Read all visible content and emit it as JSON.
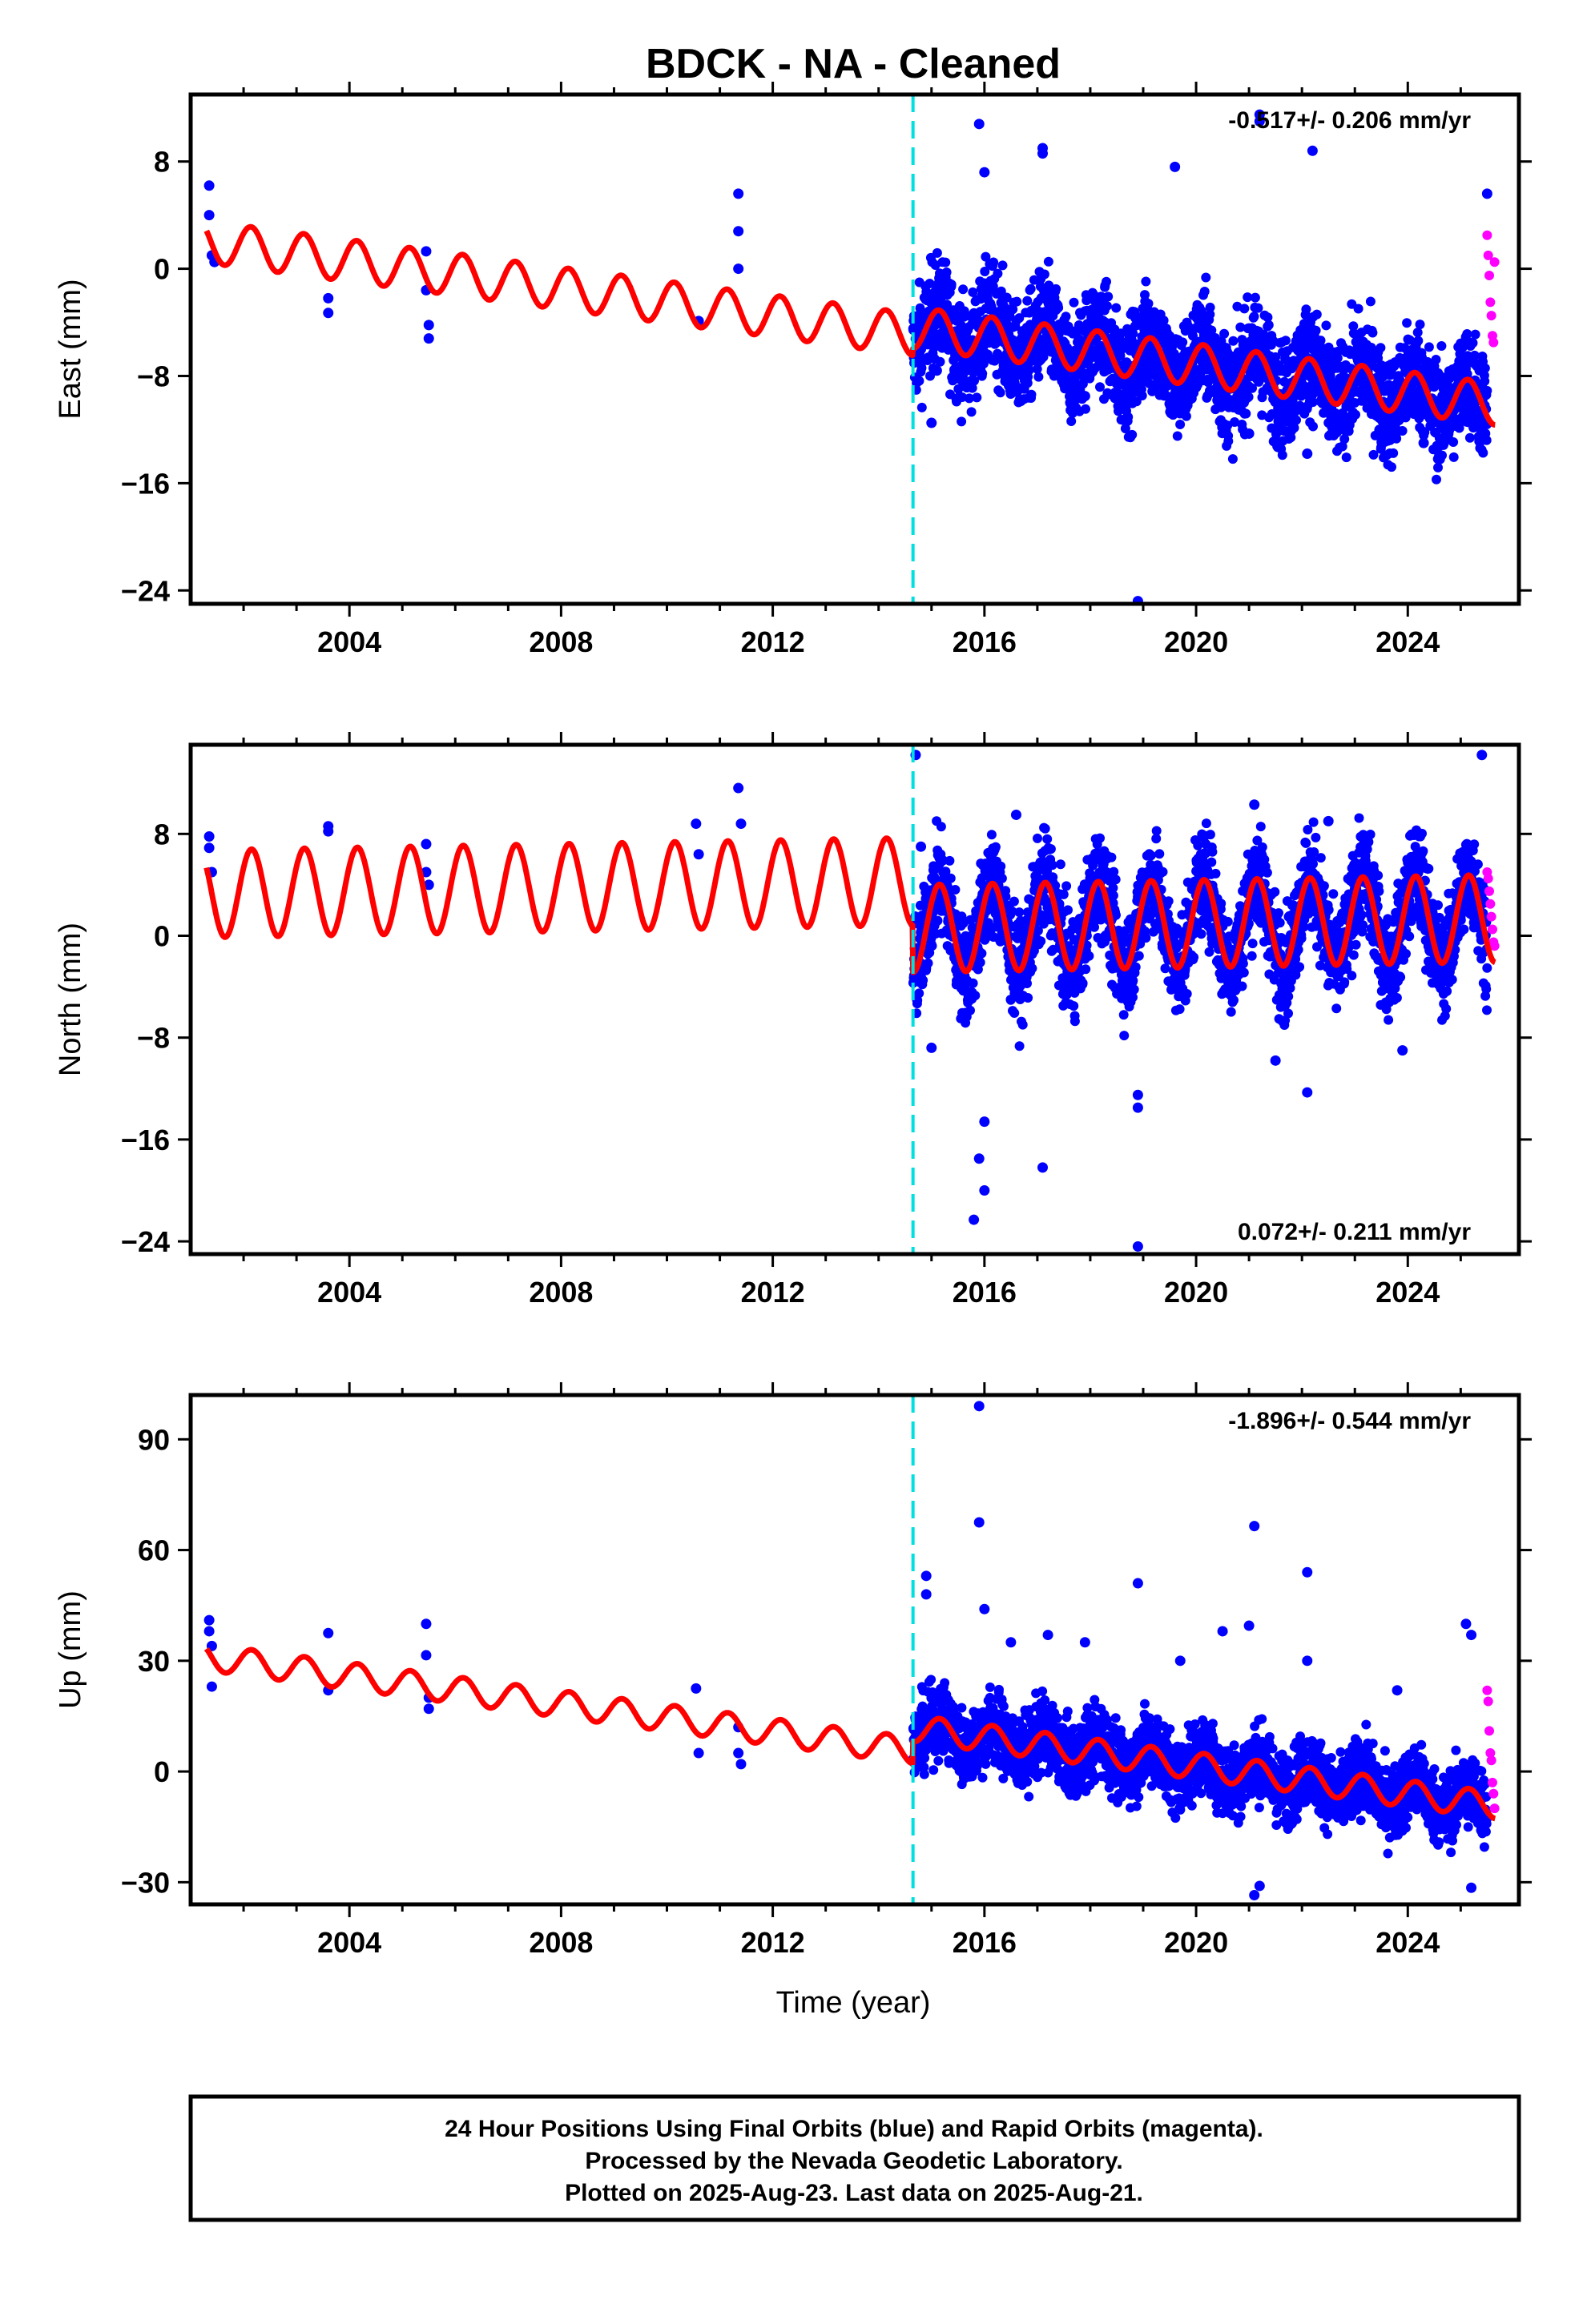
{
  "title": "BDCK  - NA - Cleaned",
  "xlabel": "Time (year)",
  "xticks": [
    2004,
    2008,
    2012,
    2016,
    2020,
    2024
  ],
  "xlim": [
    2001.0,
    2026.1
  ],
  "offset_line_year": 2014.65,
  "colors": {
    "final_orbits": "#0000ff",
    "rapid_orbits": "#ff00ff",
    "model": "#ff0000",
    "offset_line": "#00e0e0"
  },
  "footer": {
    "line1": "24 Hour Positions Using Final Orbits (blue) and Rapid Orbits (magenta).",
    "line2": "Processed by the Nevada Geodetic Laboratory.",
    "line3": "Plotted on 2025-Aug-23. Last data on 2025-Aug-21."
  },
  "chart_data": [
    {
      "type": "scatter",
      "component": "east",
      "ylabel": "East (mm)",
      "rate_label": "-0.517+/- 0.206 mm/yr",
      "rate_position": "top-right",
      "ylim": [
        -25,
        13
      ],
      "yticks": [
        8,
        0,
        -8,
        -16,
        -24
      ],
      "series": [
        {
          "name": "Final Orbits",
          "kind": "points"
        },
        {
          "name": "Rapid Orbits",
          "kind": "points"
        },
        {
          "name": "Model",
          "kind": "line"
        }
      ],
      "segments": [
        {
          "x_start": 2001.3,
          "x_end": 2014.65,
          "offset": 2.0,
          "rate": -0.517,
          "sin_amp": 1.2,
          "cos_amp": 1.0
        },
        {
          "x_start": 2014.65,
          "x_end": 2025.65,
          "offset": 2.5,
          "rate": -0.517,
          "sin_amp": 1.2,
          "cos_amp": 1.0
        }
      ],
      "sparse_points": [
        [
          2001.35,
          6.2
        ],
        [
          2001.35,
          4.0
        ],
        [
          2001.4,
          1.0
        ],
        [
          2001.45,
          0.5
        ],
        [
          2003.6,
          -2.2
        ],
        [
          2003.6,
          -3.3
        ],
        [
          2005.45,
          1.3
        ],
        [
          2005.45,
          -1.6
        ],
        [
          2005.5,
          -4.2
        ],
        [
          2005.5,
          -5.2
        ],
        [
          2010.6,
          -3.9
        ],
        [
          2011.35,
          5.6
        ],
        [
          2011.35,
          2.8
        ],
        [
          2011.35,
          0.0
        ]
      ],
      "dense_start": 2014.65,
      "dense_end": 2025.5,
      "dense_noise": 2.0,
      "outliers": [
        [
          2014.8,
          -6.0
        ],
        [
          2015.0,
          -11.5
        ],
        [
          2015.1,
          -7.6
        ],
        [
          2015.9,
          10.8
        ],
        [
          2016.0,
          7.2
        ],
        [
          2017.1,
          9.0
        ],
        [
          2017.1,
          8.6
        ],
        [
          2017.9,
          -9.5
        ],
        [
          2018.9,
          -24.8
        ],
        [
          2019.6,
          7.6
        ],
        [
          2021.0,
          -12.3
        ],
        [
          2021.2,
          11.5
        ],
        [
          2021.2,
          11.0
        ],
        [
          2022.1,
          -13.8
        ],
        [
          2022.2,
          8.8
        ],
        [
          2022.9,
          -9.2
        ],
        [
          2024.3,
          -13.0
        ],
        [
          2025.2,
          -11.5
        ],
        [
          2025.5,
          5.6
        ]
      ],
      "rapid_start": 2025.5,
      "rapid_end": 2025.64,
      "rapid_points": [
        [
          2025.5,
          2.5
        ],
        [
          2025.52,
          1.0
        ],
        [
          2025.54,
          -0.5
        ],
        [
          2025.56,
          -2.5
        ],
        [
          2025.58,
          -3.5
        ],
        [
          2025.6,
          -5.0
        ],
        [
          2025.62,
          -5.5
        ],
        [
          2025.64,
          0.5
        ]
      ]
    },
    {
      "type": "scatter",
      "component": "north",
      "ylabel": "North (mm)",
      "rate_label": "0.072+/- 0.211 mm/yr",
      "rate_position": "bottom-right",
      "ylim": [
        -25,
        15
      ],
      "yticks": [
        8,
        0,
        -8,
        -16,
        -24
      ],
      "series": [
        {
          "name": "Final Orbits",
          "kind": "points"
        },
        {
          "name": "Rapid Orbits",
          "kind": "points"
        },
        {
          "name": "Model",
          "kind": "line"
        }
      ],
      "segments": [
        {
          "x_start": 2001.3,
          "x_end": 2014.65,
          "offset": 3.3,
          "rate": 0.072,
          "sin_amp": 2.8,
          "cos_amp": 2.0
        },
        {
          "x_start": 2014.65,
          "x_end": 2025.65,
          "offset": -0.4,
          "rate": 0.072,
          "sin_amp": 2.8,
          "cos_amp": 2.0
        }
      ],
      "sparse_points": [
        [
          2001.35,
          7.8
        ],
        [
          2001.35,
          6.9
        ],
        [
          2001.4,
          5.0
        ],
        [
          2003.6,
          8.6
        ],
        [
          2003.6,
          8.2
        ],
        [
          2005.45,
          7.2
        ],
        [
          2005.45,
          5.0
        ],
        [
          2005.5,
          4.0
        ],
        [
          2010.55,
          8.8
        ],
        [
          2010.6,
          6.4
        ],
        [
          2011.35,
          11.6
        ],
        [
          2011.4,
          8.8
        ]
      ],
      "dense_start": 2014.65,
      "dense_end": 2025.5,
      "dense_noise": 2.0,
      "outliers": [
        [
          2014.7,
          14.2
        ],
        [
          2014.8,
          7.0
        ],
        [
          2015.0,
          -8.8
        ],
        [
          2015.9,
          -17.5
        ],
        [
          2016.0,
          -20.0
        ],
        [
          2015.8,
          -22.3
        ],
        [
          2016.0,
          -14.6
        ],
        [
          2016.6,
          9.5
        ],
        [
          2017.1,
          -18.2
        ],
        [
          2018.9,
          -24.4
        ],
        [
          2018.9,
          -13.5
        ],
        [
          2018.9,
          -12.5
        ],
        [
          2021.1,
          10.3
        ],
        [
          2021.5,
          -9.8
        ],
        [
          2022.1,
          -12.3
        ],
        [
          2022.5,
          9.0
        ],
        [
          2023.9,
          -9.0
        ],
        [
          2025.4,
          14.2
        ]
      ],
      "rapid_start": 2025.5,
      "rapid_end": 2025.64,
      "rapid_points": [
        [
          2025.5,
          5.0
        ],
        [
          2025.52,
          4.5
        ],
        [
          2025.54,
          3.5
        ],
        [
          2025.56,
          2.5
        ],
        [
          2025.58,
          1.5
        ],
        [
          2025.6,
          0.5
        ],
        [
          2025.62,
          -0.5
        ],
        [
          2025.64,
          -0.8
        ]
      ]
    },
    {
      "type": "scatter",
      "component": "up",
      "ylabel": "Up (mm)",
      "rate_label": "-1.896+/- 0.544 mm/yr",
      "rate_position": "top-right",
      "ylim": [
        -36,
        102
      ],
      "yticks": [
        90,
        60,
        30,
        0,
        -30
      ],
      "series": [
        {
          "name": "Final Orbits",
          "kind": "points"
        },
        {
          "name": "Rapid Orbits",
          "kind": "points"
        },
        {
          "name": "Model",
          "kind": "line"
        }
      ],
      "segments": [
        {
          "x_start": 2001.3,
          "x_end": 2014.65,
          "offset": 31.0,
          "rate": -1.896,
          "sin_amp": 3.0,
          "cos_amp": 2.0
        },
        {
          "x_start": 2014.65,
          "x_end": 2025.65,
          "offset": 37.0,
          "rate": -1.896,
          "sin_amp": 3.0,
          "cos_amp": 2.0
        }
      ],
      "sparse_points": [
        [
          2001.35,
          41.0
        ],
        [
          2001.35,
          38.0
        ],
        [
          2001.4,
          34.0
        ],
        [
          2001.4,
          23.0
        ],
        [
          2003.6,
          37.5
        ],
        [
          2003.6,
          22.0
        ],
        [
          2005.45,
          40.0
        ],
        [
          2005.45,
          31.5
        ],
        [
          2005.5,
          20.0
        ],
        [
          2005.5,
          17.0
        ],
        [
          2010.55,
          22.5
        ],
        [
          2010.6,
          5.0
        ],
        [
          2011.35,
          12.0
        ],
        [
          2011.35,
          5.0
        ],
        [
          2011.4,
          2.0
        ]
      ],
      "dense_start": 2014.65,
      "dense_end": 2025.5,
      "dense_noise": 5.0,
      "outliers": [
        [
          2014.9,
          53.0
        ],
        [
          2014.9,
          48.0
        ],
        [
          2015.9,
          99.0
        ],
        [
          2015.9,
          67.5
        ],
        [
          2016.0,
          44.0
        ],
        [
          2016.5,
          35.0
        ],
        [
          2017.2,
          37.0
        ],
        [
          2017.9,
          35.0
        ],
        [
          2018.9,
          51.0
        ],
        [
          2019.7,
          30.0
        ],
        [
          2020.5,
          38.0
        ],
        [
          2021.0,
          39.5
        ],
        [
          2021.1,
          66.5
        ],
        [
          2021.1,
          -33.5
        ],
        [
          2021.2,
          -31.0
        ],
        [
          2022.1,
          54.0
        ],
        [
          2022.1,
          30.0
        ],
        [
          2023.8,
          22.0
        ],
        [
          2025.1,
          40.0
        ],
        [
          2025.2,
          37.0
        ],
        [
          2025.2,
          -31.5
        ]
      ],
      "rapid_start": 2025.5,
      "rapid_end": 2025.64,
      "rapid_points": [
        [
          2025.5,
          22.0
        ],
        [
          2025.52,
          19.0
        ],
        [
          2025.54,
          11.0
        ],
        [
          2025.56,
          5.0
        ],
        [
          2025.58,
          3.0
        ],
        [
          2025.6,
          -3.0
        ],
        [
          2025.62,
          -6.0
        ],
        [
          2025.64,
          -10.0
        ]
      ]
    }
  ]
}
